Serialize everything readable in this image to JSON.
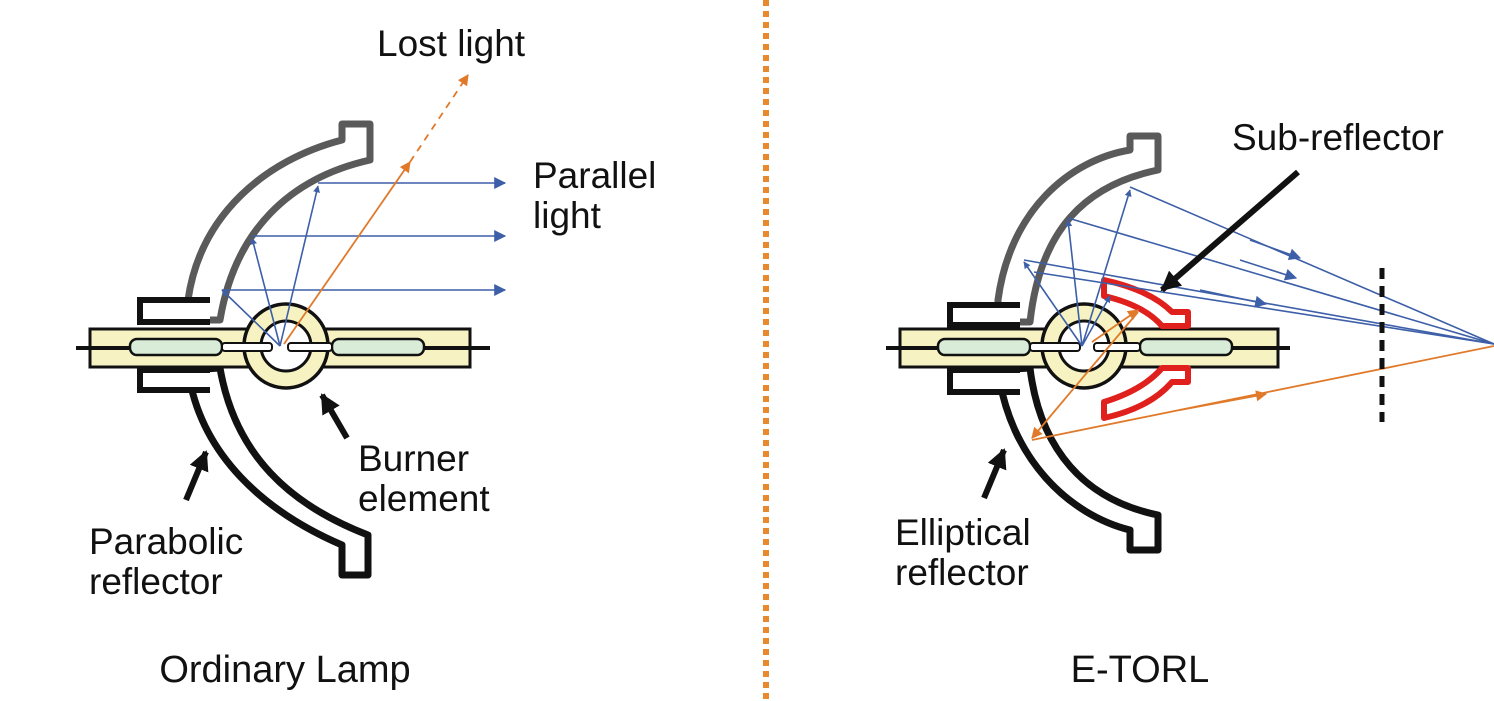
{
  "colors": {
    "blue_ray": "#3d5fa8",
    "orange_ray": "#e07a2a",
    "divider": "#e8892e",
    "sub_reflector": "#e0201d",
    "reflector_upper": "#5a5a5a",
    "reflector_lower": "#111111",
    "burner_fill": "#f6f2c2",
    "electrode_fill": "#d8ecd8"
  },
  "left_panel": {
    "title": "Ordinary Lamp",
    "lost_light_label": "Lost light",
    "parallel_label_line1": "Parallel",
    "parallel_label_line2": "light",
    "burner_label_line1": "Burner",
    "burner_label_line2": "element",
    "reflector_label_line1": "Parabolic",
    "reflector_label_line2": "reflector"
  },
  "right_panel": {
    "title": "E-TORL",
    "sub_reflector_label": "Sub-reflector",
    "reflector_label_line1": "Elliptical",
    "reflector_label_line2": "reflector"
  }
}
